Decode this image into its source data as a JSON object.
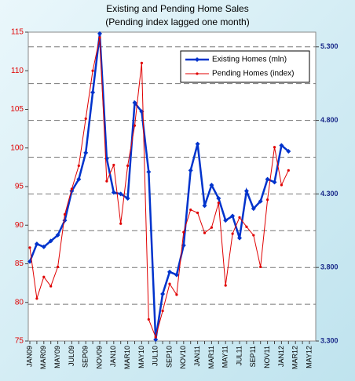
{
  "chart_data": {
    "type": "line",
    "title": "Existing and Pending Home Sales",
    "subtitle": "(Pending index lagged one month)",
    "categories": [
      "JAN09",
      null,
      "MAR09",
      null,
      "MAY09",
      null,
      "JUL09",
      null,
      "SEP09",
      null,
      "NOV09",
      null,
      "JAN10",
      null,
      "MAR10",
      null,
      "MAY10",
      null,
      "JUL10",
      null,
      "SEP10",
      null,
      "NOV10",
      null,
      "JAN11",
      null,
      "MAR11",
      null,
      "MAY11",
      null,
      "JUL11",
      null,
      "SEP11",
      null,
      "NOV11",
      null,
      "JAN12",
      null,
      "MAR12",
      null,
      "MAY12"
    ],
    "series": [
      {
        "name": "Existing Homes (mln)",
        "color": "#0033cc",
        "axis": "y2",
        "values": [
          3.84,
          3.96,
          3.94,
          3.98,
          4.02,
          4.12,
          4.32,
          4.4,
          4.58,
          4.99,
          5.39,
          4.54,
          4.31,
          4.3,
          4.27,
          4.92,
          4.86,
          4.45,
          3.31,
          3.62,
          3.77,
          3.75,
          3.95,
          4.46,
          4.64,
          4.22,
          4.36,
          4.27,
          4.12,
          4.15,
          4.0,
          4.32,
          4.2,
          4.25,
          4.4,
          4.38,
          4.63,
          4.59,
          null,
          null,
          null
        ]
      },
      {
        "name": "Pending Homes (index)",
        "color": "#e00000",
        "values": [
          87.1,
          80.5,
          83.3,
          82.1,
          84.6,
          91.4,
          94.7,
          97.7,
          103.8,
          110.0,
          114.3,
          95.7,
          97.8,
          90.2,
          97.7,
          102.9,
          111.0,
          77.8,
          75.5,
          78.9,
          82.4,
          81.0,
          89.1,
          92.0,
          91.6,
          89.0,
          89.7,
          92.9,
          82.2,
          88.9,
          91.0,
          89.8,
          88.7,
          84.6,
          93.3,
          100.1,
          95.2,
          97.1,
          null,
          null,
          null
        ]
      }
    ],
    "ylim": [
      75,
      115
    ],
    "yticks": [
      75,
      80,
      85,
      90,
      95,
      100,
      105,
      110,
      115
    ],
    "y2lim": [
      3.3,
      5.4
    ],
    "y2ticks": [
      {
        "value": 3.3,
        "label": "3.300"
      },
      {
        "value": 3.8,
        "label": "3.800"
      },
      {
        "value": 4.3,
        "label": "4.300"
      },
      {
        "value": 4.8,
        "label": "4.800"
      },
      {
        "value": 5.3,
        "label": "5.300"
      }
    ],
    "y2gridlines": [
      3.55,
      3.8,
      4.05,
      4.3,
      4.55,
      4.8,
      5.05,
      5.3
    ],
    "legend": "top-right"
  }
}
